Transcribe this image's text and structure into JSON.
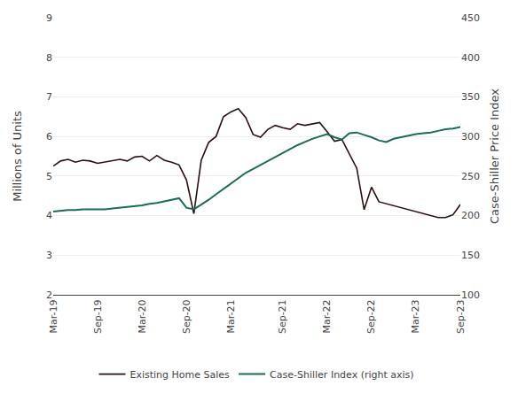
{
  "chart_data": {
    "type": "line",
    "ylabel": "Millions of Units",
    "y2label": "Case-Shiller Price Index",
    "categories": [
      "Mar-19",
      null,
      null,
      null,
      null,
      null,
      "Sep-19",
      null,
      null,
      null,
      null,
      null,
      "Mar-20",
      null,
      null,
      null,
      null,
      null,
      "Sep-20",
      null,
      null,
      null,
      null,
      null,
      "Mar-21",
      null,
      null,
      null,
      null,
      null,
      null,
      "Sep-21",
      null,
      null,
      null,
      null,
      null,
      "Mar-22",
      null,
      null,
      null,
      null,
      null,
      "Sep-22",
      null,
      null,
      null,
      null,
      null,
      "Mar-23",
      null,
      null,
      null,
      null,
      null,
      "Sep-23"
    ],
    "series": [
      {
        "name": "Existing Home Sales",
        "color": "#2d0f10",
        "values": [
          5.25,
          5.38,
          5.42,
          5.35,
          5.4,
          5.38,
          5.32,
          5.35,
          5.38,
          5.42,
          5.38,
          5.48,
          5.5,
          5.38,
          5.52,
          5.4,
          5.35,
          5.28,
          4.9,
          4.05,
          5.4,
          5.85,
          6.0,
          6.5,
          6.62,
          6.7,
          6.48,
          6.05,
          5.98,
          6.18,
          6.28,
          6.22,
          6.18,
          6.32,
          6.28,
          6.32,
          6.35,
          6.12,
          5.88,
          5.92,
          5.55,
          5.2,
          4.15,
          4.72,
          4.35,
          4.3,
          4.25,
          4.2,
          4.15,
          4.1,
          4.05,
          4.0,
          3.95,
          3.95,
          4.02,
          4.28
        ]
      },
      {
        "name": "Case-Shiller Index (right axis)",
        "color": "#1a6b5a",
        "axis": "y2",
        "values": [
          205,
          206,
          207,
          207,
          208,
          208,
          208,
          208,
          209,
          210,
          211,
          212,
          213,
          215,
          216,
          218,
          220,
          222,
          210,
          208,
          214,
          220,
          227,
          234,
          241,
          248,
          254,
          259,
          264,
          269,
          274,
          279,
          284,
          289,
          293,
          297,
          300,
          303,
          299,
          296,
          304,
          305,
          302,
          299,
          295,
          293,
          297,
          299,
          301,
          303,
          304,
          305,
          307,
          309,
          310,
          312
        ]
      }
    ],
    "ylim": [
      2,
      9
    ],
    "yticks": [
      2,
      3,
      4,
      5,
      6,
      7,
      8,
      9
    ],
    "y2lim": [
      100,
      450
    ],
    "y2ticks": [
      100,
      150,
      200,
      250,
      300,
      350,
      400,
      450
    ],
    "grid": true,
    "legend": "bottom"
  }
}
